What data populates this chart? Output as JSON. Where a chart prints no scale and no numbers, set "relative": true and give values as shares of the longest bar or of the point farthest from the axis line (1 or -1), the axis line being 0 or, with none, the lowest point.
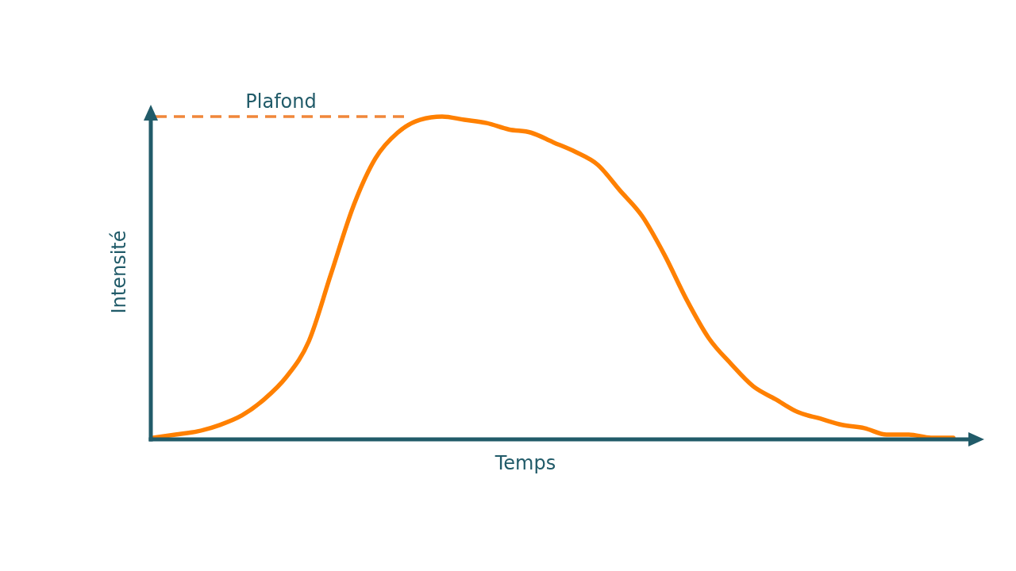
{
  "chart_data": {
    "type": "line",
    "relative": true,
    "xlabel": "Temps",
    "ylabel": "Intensité",
    "categories": [
      null,
      null,
      null,
      null,
      null,
      null,
      null,
      null,
      null,
      null,
      null,
      null,
      null,
      null,
      null,
      null,
      null,
      null,
      null,
      null,
      null,
      null,
      null,
      null,
      null,
      null,
      null,
      null,
      null,
      null,
      null,
      null,
      null,
      null,
      null,
      null,
      null
    ],
    "series": [
      {
        "color": "#ff8000",
        "values": [
          0,
          0.01,
          0.02,
          0.04,
          0.07,
          0.12,
          0.19,
          0.3,
          0.51,
          0.72,
          0.87,
          0.95,
          0.99,
          1,
          0.99,
          0.98,
          0.96,
          0.95,
          0.92,
          0.89,
          0.85,
          0.77,
          0.69,
          0.57,
          0.43,
          0.31,
          0.23,
          0.16,
          0.12,
          0.08,
          0.06,
          0.04,
          0.03,
          0.01,
          0.01,
          0,
          0
        ]
      }
    ],
    "ref_lines": [
      {
        "axis": "y",
        "value": 1,
        "label": "Plafond",
        "color": "#f0873a",
        "line_style": "dashed"
      }
    ]
  }
}
